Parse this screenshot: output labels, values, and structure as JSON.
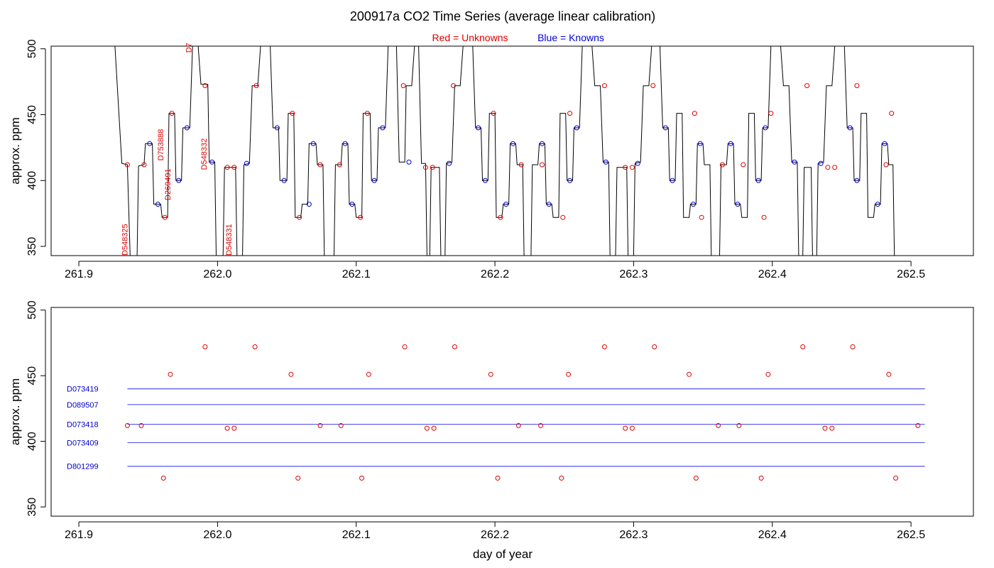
{
  "title": "200917a   CO2 Time Series (average linear calibration)",
  "legend": {
    "red_label": "Red = Unknowns",
    "blue_label": "Blue = Knowns",
    "red_color": "#e00000",
    "blue_color": "#0000dd"
  },
  "chart_data": [
    {
      "type": "line",
      "panel": "top",
      "ylabel": "approx. ppm",
      "xlabel": "",
      "xlim": [
        261.88,
        262.545
      ],
      "ylim": [
        343,
        502
      ],
      "x_ticks": [
        "261.9",
        "262.0",
        "262.1",
        "262.2",
        "262.3",
        "262.4",
        "262.5"
      ],
      "y_ticks": [
        "350",
        "400",
        "450",
        "500"
      ],
      "trace": [
        [
          261.926,
          502
        ],
        [
          261.931,
          413
        ],
        [
          261.935,
          412
        ],
        [
          261.937,
          343
        ],
        [
          261.942,
          343
        ],
        [
          261.943,
          411
        ],
        [
          261.947,
          412
        ],
        [
          261.948,
          428
        ],
        [
          261.953,
          428
        ],
        [
          261.954,
          382
        ],
        [
          261.959,
          382
        ],
        [
          261.96,
          372
        ],
        [
          261.964,
          372
        ],
        [
          261.965,
          451
        ],
        [
          261.969,
          451
        ],
        [
          261.97,
          400
        ],
        [
          261.974,
          400
        ],
        [
          261.975,
          440
        ],
        [
          261.98,
          440
        ],
        [
          261.982,
          502
        ],
        [
          261.986,
          502
        ],
        [
          261.988,
          473
        ],
        [
          261.993,
          473
        ],
        [
          261.994,
          414
        ],
        [
          261.998,
          414
        ],
        [
          261.999,
          343
        ],
        [
          262.004,
          343
        ],
        [
          262.005,
          410
        ],
        [
          262.013,
          410
        ],
        [
          262.014,
          343
        ],
        [
          262.018,
          343
        ],
        [
          262.019,
          412
        ],
        [
          262.023,
          413
        ],
        [
          262.025,
          472
        ],
        [
          262.029,
          472
        ],
        [
          262.031,
          502
        ],
        [
          262.038,
          502
        ],
        [
          262.04,
          440
        ],
        [
          262.044,
          440
        ],
        [
          262.045,
          400
        ],
        [
          262.05,
          400
        ],
        [
          262.051,
          451
        ],
        [
          262.055,
          451
        ],
        [
          262.056,
          372
        ],
        [
          262.06,
          372
        ],
        [
          262.061,
          382
        ],
        [
          262.065,
          382
        ],
        [
          262.066,
          428
        ],
        [
          262.071,
          428
        ],
        [
          262.072,
          412
        ],
        [
          262.076,
          412
        ],
        [
          262.077,
          343
        ],
        [
          262.084,
          343
        ],
        [
          262.085,
          412
        ],
        [
          262.089,
          412
        ],
        [
          262.09,
          428
        ],
        [
          262.094,
          428
        ],
        [
          262.095,
          382
        ],
        [
          262.099,
          382
        ],
        [
          262.1,
          372
        ],
        [
          262.104,
          372
        ],
        [
          262.105,
          451
        ],
        [
          262.11,
          451
        ],
        [
          262.111,
          400
        ],
        [
          262.115,
          400
        ],
        [
          262.116,
          440
        ],
        [
          262.121,
          440
        ],
        [
          262.123,
          502
        ],
        [
          262.129,
          502
        ],
        [
          262.131,
          414
        ],
        [
          262.135,
          414
        ],
        [
          262.136,
          472
        ],
        [
          262.14,
          472
        ],
        [
          262.142,
          502
        ],
        [
          262.145,
          502
        ],
        [
          262.147,
          413
        ],
        [
          262.15,
          413
        ],
        [
          262.151,
          343
        ],
        [
          262.153,
          343
        ],
        [
          262.154,
          410
        ],
        [
          262.16,
          410
        ],
        [
          262.161,
          343
        ],
        [
          262.164,
          343
        ],
        [
          262.165,
          413
        ],
        [
          262.169,
          414
        ],
        [
          262.171,
          472
        ],
        [
          262.175,
          472
        ],
        [
          262.177,
          502
        ],
        [
          262.184,
          502
        ],
        [
          262.186,
          440
        ],
        [
          262.19,
          440
        ],
        [
          262.191,
          400
        ],
        [
          262.195,
          400
        ],
        [
          262.196,
          451
        ],
        [
          262.2,
          451
        ],
        [
          262.201,
          372
        ],
        [
          262.205,
          372
        ],
        [
          262.206,
          382
        ],
        [
          262.21,
          382
        ],
        [
          262.211,
          428
        ],
        [
          262.215,
          428
        ],
        [
          262.216,
          412
        ],
        [
          262.22,
          412
        ],
        [
          262.221,
          343
        ],
        [
          262.226,
          343
        ],
        [
          262.227,
          412
        ],
        [
          262.231,
          412
        ],
        [
          262.232,
          428
        ],
        [
          262.236,
          428
        ],
        [
          262.237,
          382
        ],
        [
          262.241,
          382
        ],
        [
          262.242,
          372
        ],
        [
          262.246,
          372
        ],
        [
          262.247,
          451
        ],
        [
          262.251,
          451
        ],
        [
          262.252,
          400
        ],
        [
          262.256,
          400
        ],
        [
          262.257,
          440
        ],
        [
          262.261,
          440
        ],
        [
          262.263,
          502
        ],
        [
          262.27,
          502
        ],
        [
          262.272,
          472
        ],
        [
          262.276,
          472
        ],
        [
          262.278,
          414
        ],
        [
          262.282,
          414
        ],
        [
          262.283,
          343
        ],
        [
          262.287,
          343
        ],
        [
          262.288,
          410
        ],
        [
          262.295,
          410
        ],
        [
          262.296,
          343
        ],
        [
          262.3,
          343
        ],
        [
          262.301,
          413
        ],
        [
          262.305,
          414
        ],
        [
          262.307,
          472
        ],
        [
          262.311,
          472
        ],
        [
          262.313,
          502
        ],
        [
          262.319,
          502
        ],
        [
          262.321,
          440
        ],
        [
          262.325,
          440
        ],
        [
          262.326,
          400
        ],
        [
          262.33,
          400
        ],
        [
          262.331,
          451
        ],
        [
          262.335,
          451
        ],
        [
          262.336,
          372
        ],
        [
          262.34,
          372
        ],
        [
          262.341,
          382
        ],
        [
          262.345,
          382
        ],
        [
          262.346,
          428
        ],
        [
          262.35,
          428
        ],
        [
          262.351,
          412
        ],
        [
          262.355,
          412
        ],
        [
          262.356,
          343
        ],
        [
          262.362,
          343
        ],
        [
          262.363,
          412
        ],
        [
          262.367,
          412
        ],
        [
          262.368,
          428
        ],
        [
          262.372,
          428
        ],
        [
          262.373,
          382
        ],
        [
          262.377,
          382
        ],
        [
          262.378,
          372
        ],
        [
          262.382,
          372
        ],
        [
          262.383,
          451
        ],
        [
          262.387,
          451
        ],
        [
          262.388,
          400
        ],
        [
          262.392,
          400
        ],
        [
          262.393,
          440
        ],
        [
          262.397,
          440
        ],
        [
          262.399,
          502
        ],
        [
          262.406,
          502
        ],
        [
          262.408,
          472
        ],
        [
          262.412,
          472
        ],
        [
          262.414,
          414
        ],
        [
          262.418,
          414
        ],
        [
          262.419,
          343
        ],
        [
          262.422,
          343
        ],
        [
          262.423,
          410
        ],
        [
          262.428,
          410
        ],
        [
          262.429,
          343
        ],
        [
          262.432,
          343
        ],
        [
          262.433,
          413
        ],
        [
          262.437,
          414
        ],
        [
          262.439,
          472
        ],
        [
          262.443,
          472
        ],
        [
          262.445,
          502
        ],
        [
          262.452,
          502
        ],
        [
          262.454,
          440
        ],
        [
          262.458,
          440
        ],
        [
          262.459,
          400
        ],
        [
          262.463,
          400
        ],
        [
          262.464,
          451
        ],
        [
          262.468,
          451
        ],
        [
          262.469,
          372
        ],
        [
          262.473,
          372
        ],
        [
          262.474,
          382
        ],
        [
          262.478,
          382
        ],
        [
          262.479,
          428
        ],
        [
          262.483,
          428
        ],
        [
          262.484,
          412
        ],
        [
          262.487,
          412
        ],
        [
          262.488,
          343
        ]
      ],
      "markers_unknown": [
        [
          261.935,
          412
        ],
        [
          261.947,
          412
        ],
        [
          261.962,
          372
        ],
        [
          261.967,
          451
        ],
        [
          261.991,
          472
        ],
        [
          262.007,
          410
        ],
        [
          262.012,
          410
        ],
        [
          262.028,
          472
        ],
        [
          262.054,
          451
        ],
        [
          262.059,
          372
        ],
        [
          262.074,
          412
        ],
        [
          262.088,
          412
        ],
        [
          262.103,
          372
        ],
        [
          262.108,
          451
        ],
        [
          262.134,
          472
        ],
        [
          262.15,
          410
        ],
        [
          262.155,
          410
        ],
        [
          262.17,
          472
        ],
        [
          262.199,
          451
        ],
        [
          262.204,
          372
        ],
        [
          262.219,
          412
        ],
        [
          262.234,
          412
        ],
        [
          262.249,
          372
        ],
        [
          262.254,
          451
        ],
        [
          262.279,
          472
        ],
        [
          262.294,
          410
        ],
        [
          262.299,
          410
        ],
        [
          262.314,
          472
        ],
        [
          262.344,
          451
        ],
        [
          262.349,
          372
        ],
        [
          262.364,
          412
        ],
        [
          262.379,
          412
        ],
        [
          262.394,
          372
        ],
        [
          262.399,
          451
        ],
        [
          262.425,
          472
        ],
        [
          262.44,
          410
        ],
        [
          262.445,
          410
        ],
        [
          262.461,
          472
        ],
        [
          262.486,
          451
        ],
        [
          262.482,
          412
        ]
      ],
      "markers_known": [
        [
          261.951,
          428
        ],
        [
          261.957,
          382
        ],
        [
          261.972,
          400
        ],
        [
          261.978,
          440
        ],
        [
          261.996,
          414
        ],
        [
          262.021,
          413
        ],
        [
          262.043,
          440
        ],
        [
          262.048,
          400
        ],
        [
          262.066,
          382
        ],
        [
          262.069,
          428
        ],
        [
          262.092,
          428
        ],
        [
          262.097,
          382
        ],
        [
          262.113,
          400
        ],
        [
          262.119,
          440
        ],
        [
          262.138,
          414
        ],
        [
          262.167,
          413
        ],
        [
          262.188,
          440
        ],
        [
          262.193,
          400
        ],
        [
          262.208,
          382
        ],
        [
          262.213,
          428
        ],
        [
          262.234,
          428
        ],
        [
          262.239,
          382
        ],
        [
          262.254,
          400
        ],
        [
          262.259,
          440
        ],
        [
          262.28,
          414
        ],
        [
          262.303,
          413
        ],
        [
          262.323,
          440
        ],
        [
          262.328,
          400
        ],
        [
          262.343,
          382
        ],
        [
          262.348,
          428
        ],
        [
          262.37,
          428
        ],
        [
          262.375,
          382
        ],
        [
          262.39,
          400
        ],
        [
          262.395,
          440
        ],
        [
          262.416,
          414
        ],
        [
          262.435,
          413
        ],
        [
          262.456,
          440
        ],
        [
          262.461,
          400
        ],
        [
          262.476,
          382
        ],
        [
          262.481,
          428
        ]
      ],
      "sample_ids": [
        {
          "text": "D548325",
          "x": 261.935,
          "y": 343
        },
        {
          "text": "D753888",
          "x": 261.961,
          "y": 415
        },
        {
          "text": "D269491",
          "x": 261.966,
          "y": 385
        },
        {
          "text": "D7",
          "x": 261.981,
          "y": 497
        },
        {
          "text": "D548332",
          "x": 261.992,
          "y": 408
        },
        {
          "text": "D548331",
          "x": 262.01,
          "y": 343
        }
      ]
    },
    {
      "type": "scatter",
      "panel": "bottom",
      "ylabel": "approx. ppm",
      "xlabel": "day of year",
      "xlim": [
        261.88,
        262.545
      ],
      "ylim": [
        343,
        502
      ],
      "x_ticks": [
        "261.9",
        "262.0",
        "262.1",
        "262.2",
        "262.3",
        "262.4",
        "262.5"
      ],
      "y_ticks": [
        "350",
        "400",
        "450",
        "500"
      ],
      "unknowns": [
        [
          261.935,
          412
        ],
        [
          261.945,
          412
        ],
        [
          261.961,
          372
        ],
        [
          261.966,
          451
        ],
        [
          261.991,
          472
        ],
        [
          262.007,
          410
        ],
        [
          262.012,
          410
        ],
        [
          262.027,
          472
        ],
        [
          262.053,
          451
        ],
        [
          262.058,
          372
        ],
        [
          262.074,
          412
        ],
        [
          262.089,
          412
        ],
        [
          262.104,
          372
        ],
        [
          262.109,
          451
        ],
        [
          262.135,
          472
        ],
        [
          262.151,
          410
        ],
        [
          262.156,
          410
        ],
        [
          262.171,
          472
        ],
        [
          262.197,
          451
        ],
        [
          262.202,
          372
        ],
        [
          262.217,
          412
        ],
        [
          262.233,
          412
        ],
        [
          262.248,
          372
        ],
        [
          262.253,
          451
        ],
        [
          262.279,
          472
        ],
        [
          262.294,
          410
        ],
        [
          262.299,
          410
        ],
        [
          262.315,
          472
        ],
        [
          262.34,
          451
        ],
        [
          262.345,
          372
        ],
        [
          262.361,
          412
        ],
        [
          262.376,
          412
        ],
        [
          262.392,
          372
        ],
        [
          262.397,
          451
        ],
        [
          262.422,
          472
        ],
        [
          262.438,
          410
        ],
        [
          262.443,
          410
        ],
        [
          262.458,
          472
        ],
        [
          262.484,
          451
        ],
        [
          262.489,
          372
        ],
        [
          262.505,
          412
        ]
      ],
      "standards": [
        {
          "name": "D073419",
          "value": 440,
          "x_start": 261.935,
          "x_end": 262.51
        },
        {
          "name": "D089507",
          "value": 428,
          "x_start": 261.935,
          "x_end": 262.51
        },
        {
          "name": "D073418",
          "value": 413,
          "x_start": 261.935,
          "x_end": 262.51
        },
        {
          "name": "D073409",
          "value": 399,
          "x_start": 261.935,
          "x_end": 262.51
        },
        {
          "name": "D801299",
          "value": 381,
          "x_start": 261.935,
          "x_end": 262.51
        }
      ]
    }
  ]
}
